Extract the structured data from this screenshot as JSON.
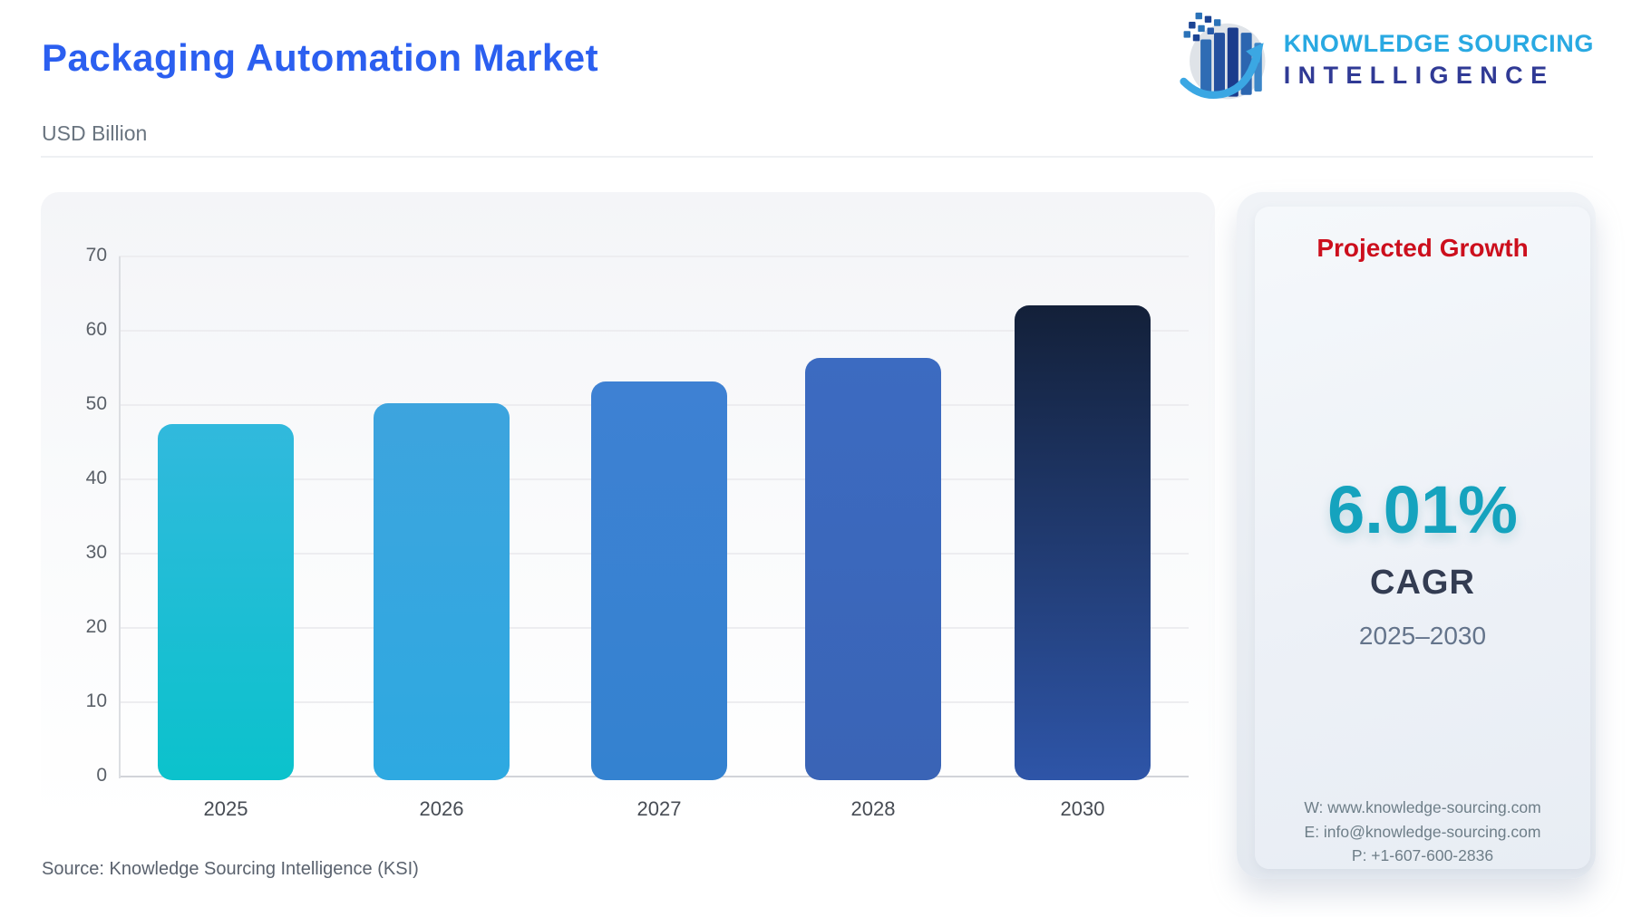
{
  "header": {
    "title": "Packaging Automation Market",
    "subtitle": "USD Billion"
  },
  "logo": {
    "line1": "KNOWLEDGE SOURCING",
    "line2": "INTELLIGENCE",
    "icon": "bar-chart-globe-arrow"
  },
  "chart_data": {
    "type": "bar",
    "title": "Packaging Automation Market",
    "ylabel": "USD Billion",
    "categories": [
      "2025",
      "2026",
      "2027",
      "2028",
      "2030"
    ],
    "values": [
      47.4,
      50.2,
      53.2,
      56.4,
      63.4
    ],
    "ylim": [
      0,
      70
    ],
    "yticks": [
      0,
      10,
      20,
      30,
      40,
      50,
      60,
      70
    ],
    "grid": true,
    "legend": "none",
    "bar_colors": [
      {
        "top": "#31b9dd",
        "bottom": "#0bc2cc"
      },
      {
        "top": "#3da4de",
        "bottom": "#2ea9e1"
      },
      {
        "top": "#3e81d3",
        "bottom": "#3482d0"
      },
      {
        "top": "#3c6bc1",
        "bottom": "#3a64b6"
      },
      {
        "top": "#132039",
        "bottom": "#2e55a8"
      }
    ]
  },
  "growth_panel": {
    "title": "Projected Growth",
    "value": "6.01%",
    "metric": "CAGR",
    "period": "2025–2030",
    "contact": {
      "website": "W: www.knowledge-sourcing.com",
      "email": "E: info@knowledge-sourcing.com",
      "phone": "P: +1-607-600-2836"
    }
  },
  "footer": {
    "source": "Source: Knowledge Sourcing Intelligence (KSI)"
  },
  "colors": {
    "title_blue": "#2b5ff0",
    "growth_red": "#cc0f1d",
    "cagr_teal": "#15a3be",
    "metric_navy": "#333c52",
    "logo_light_blue": "#29a9e2",
    "logo_dark_blue": "#303a95"
  }
}
